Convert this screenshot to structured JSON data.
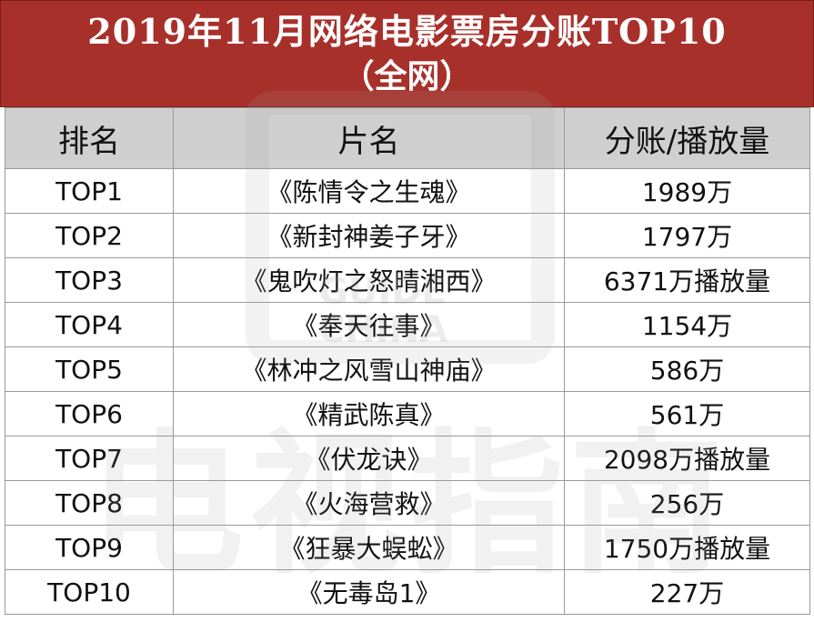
{
  "title": {
    "line1": "2019年11月网络电影票房分账TOP10",
    "line2": "（全网）"
  },
  "table": {
    "headers": [
      "排名",
      "片名",
      "分账/播放量"
    ],
    "rows": [
      {
        "rank": "TOP1",
        "name": "《陈情令之生魂》",
        "value": "1989万"
      },
      {
        "rank": "TOP2",
        "name": "《新封神姜子牙》",
        "value": "1797万"
      },
      {
        "rank": "TOP3",
        "name": "《鬼吹灯之怒晴湘西》",
        "value": "6371万播放量"
      },
      {
        "rank": "TOP4",
        "name": "《奉天往事》",
        "value": "1154万"
      },
      {
        "rank": "TOP5",
        "name": "《林冲之风雪山神庙》",
        "value": "586万"
      },
      {
        "rank": "TOP6",
        "name": "《精武陈真》",
        "value": "561万"
      },
      {
        "rank": "TOP7",
        "name": "《伏龙诀》",
        "value": "2098万播放量"
      },
      {
        "rank": "TOP8",
        "name": "《火海营救》",
        "value": "256万"
      },
      {
        "rank": "TOP9",
        "name": "《狂暴大蜈蚣》",
        "value": "1750万播放量"
      },
      {
        "rank": "TOP10",
        "name": "《无毒岛1》",
        "value": "227万"
      }
    ]
  },
  "watermark": {
    "logo_text": "GUIDE CHINA",
    "big_text": "电视指南"
  },
  "colors": {
    "title_background": "#a8302b",
    "header_background": "#cfcfcf"
  }
}
